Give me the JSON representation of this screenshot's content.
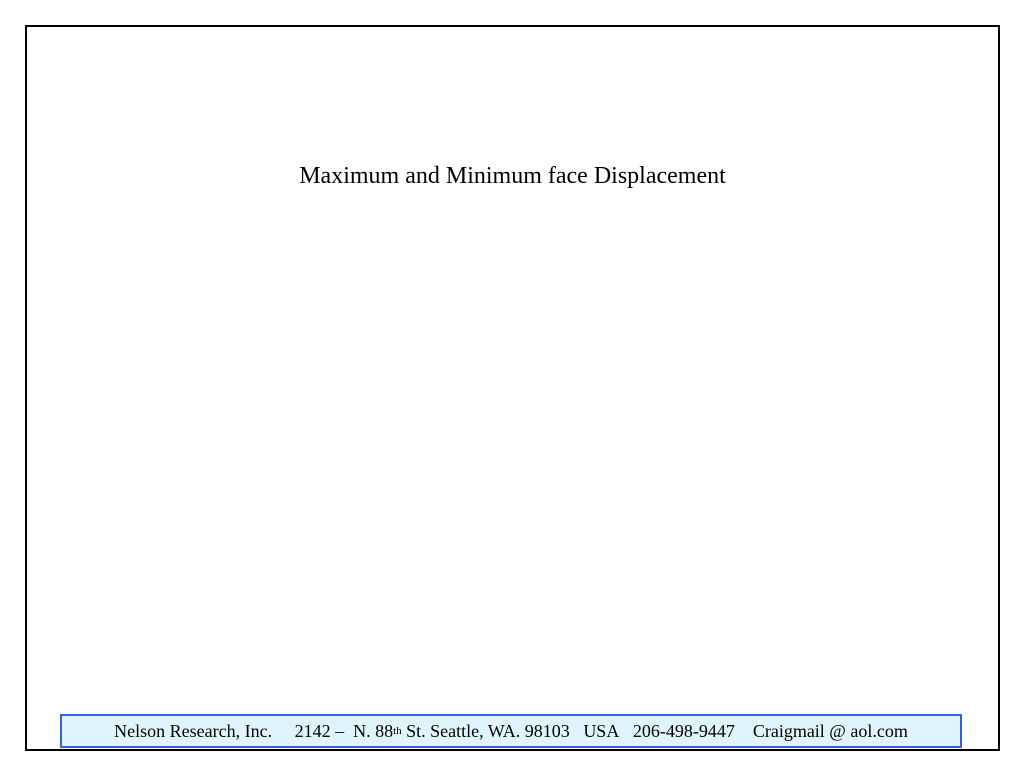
{
  "slide": {
    "title": "Maximum and Minimum face Displacement"
  },
  "footer": {
    "company": "Nelson Research, Inc.",
    "address_prefix": "2142 –  N. 88",
    "address_sup": "th",
    "address_suffix": " St. Seattle, WA. 98103",
    "country": "USA",
    "phone": "206-498-9447",
    "email": "Craigmail @ aol.com",
    "background_color": "#dff5fb",
    "border_color": "#3d5fd6"
  }
}
